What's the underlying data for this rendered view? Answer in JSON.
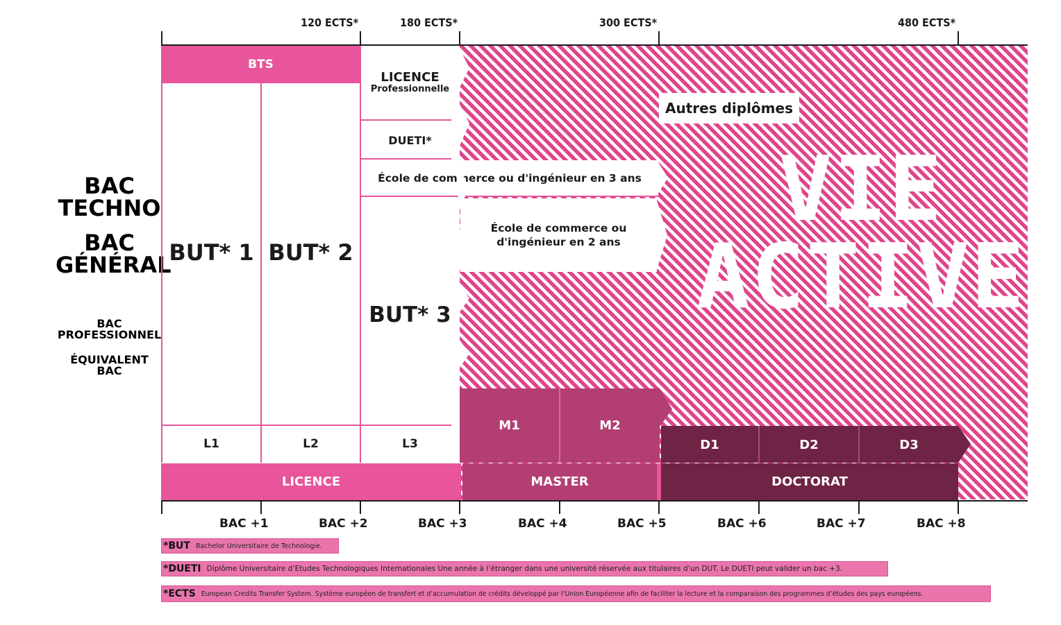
{
  "ects_labels": [
    "120 ECTS*",
    "180 ECTS*",
    "300 ECTS*",
    "480 ECTS*"
  ],
  "left_labels": {
    "bac_techno": [
      "BAC",
      "TECHNO"
    ],
    "bac_general": [
      "BAC",
      "GÉNÉRAL"
    ],
    "bac_pro": [
      "BAC",
      "PROFESSIONNEL"
    ],
    "equivalent": [
      "ÉQUIVALENT",
      "BAC"
    ]
  },
  "bts": "BTS",
  "but1": "BUT* 1",
  "but2": "BUT* 2",
  "but3": "BUT* 3",
  "licence_pro": {
    "line1": "LICENCE",
    "line2": "Professionnelle"
  },
  "dueti": "DUETI*",
  "ecole3": "École de commerce ou d'ingénieur en 3 ans",
  "ecole2": {
    "line1": "École de commerce ou",
    "line2": "d'ingénieur en 2 ans"
  },
  "autres": "Autres diplômes",
  "vie_active": {
    "line1": "VIE",
    "line2": "ACTIVE"
  },
  "years": {
    "l1": "L1",
    "l2": "L2",
    "l3": "L3",
    "m1": "M1",
    "m2": "M2",
    "d1": "D1",
    "d2": "D2",
    "d3": "D3"
  },
  "cycles": {
    "licence": "LICENCE",
    "master": "MASTER",
    "doctorat": "DOCTORAT"
  },
  "bac_levels": [
    "BAC +1",
    "BAC +2",
    "BAC +3",
    "BAC +4",
    "BAC +5",
    "BAC +6",
    "BAC +7",
    "BAC +8"
  ],
  "notes": [
    {
      "key": "*BUT",
      "text": "Bachelor Universitaire de Technologie."
    },
    {
      "key": "*DUETI",
      "text": "Diplôme Universitaire d’Etudes Technologiques Internationales Une année à l’étranger dans une université réservée aux titulaires d’un DUT. Le DUETI peut valider un bac +3."
    },
    {
      "key": "*ECTS",
      "text": "European Credits Transfer System. Système européen de transfert et d’accumulation de crédits développé par l’Union Européenne afin de faciliter la lecture et la comparaison des programmes d’études des pays européens."
    }
  ],
  "colors": {
    "pink": "#e8559a",
    "mid": "#b33e73",
    "dark": "#6f2446",
    "hatch": "#e0448c"
  }
}
